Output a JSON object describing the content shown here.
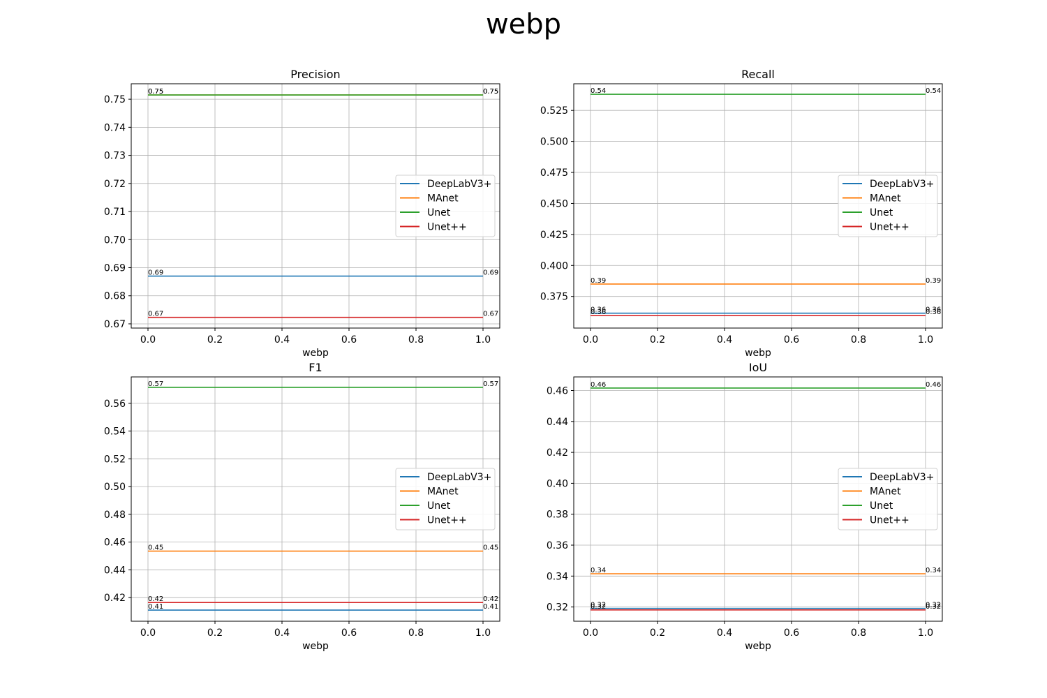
{
  "figure": {
    "title": "webp"
  },
  "chart_data": [
    {
      "type": "line",
      "title": "Precision",
      "xlabel": "webp",
      "ylabel": "",
      "x": [
        0.0,
        1.0
      ],
      "xlim": [
        -0.05,
        1.05
      ],
      "ylim": [
        0.6685,
        0.7555
      ],
      "xticks": [
        0.0,
        0.2,
        0.4,
        0.6,
        0.8,
        1.0
      ],
      "xtick_labels": [
        "0.0",
        "0.2",
        "0.4",
        "0.6",
        "0.8",
        "1.0"
      ],
      "yticks": [
        0.67,
        0.68,
        0.69,
        0.7,
        0.71,
        0.72,
        0.73,
        0.74,
        0.75
      ],
      "ytick_labels": [
        "0.67",
        "0.68",
        "0.69",
        "0.70",
        "0.71",
        "0.72",
        "0.73",
        "0.74",
        "0.75"
      ],
      "grid": true,
      "legend": "center right",
      "series": [
        {
          "name": "DeepLabV3+",
          "color": "#1f77b4",
          "values": [
            0.687,
            0.687
          ],
          "labels": [
            "0.69",
            "0.69"
          ]
        },
        {
          "name": "MAnet",
          "color": "#ff7f0e",
          "values": [
            0.7515,
            0.7515
          ],
          "labels": [
            "0.75",
            "0.75"
          ]
        },
        {
          "name": "Unet",
          "color": "#2ca02c",
          "values": [
            0.7515,
            0.7515
          ],
          "labels": [
            "0.75",
            "0.75"
          ]
        },
        {
          "name": "Unet++",
          "color": "#d62728",
          "values": [
            0.6723,
            0.6723
          ],
          "labels": [
            "0.67",
            "0.67"
          ]
        }
      ]
    },
    {
      "type": "line",
      "title": "Recall",
      "xlabel": "webp",
      "ylabel": "",
      "x": [
        0.0,
        1.0
      ],
      "xlim": [
        -0.05,
        1.05
      ],
      "ylim": [
        0.3495,
        0.5465
      ],
      "xticks": [
        0.0,
        0.2,
        0.4,
        0.6,
        0.8,
        1.0
      ],
      "xtick_labels": [
        "0.0",
        "0.2",
        "0.4",
        "0.6",
        "0.8",
        "1.0"
      ],
      "yticks": [
        0.375,
        0.4,
        0.425,
        0.45,
        0.475,
        0.5,
        0.525
      ],
      "ytick_labels": [
        "0.375",
        "0.400",
        "0.425",
        "0.450",
        "0.475",
        "0.500",
        "0.525"
      ],
      "grid": true,
      "legend": "center right",
      "series": [
        {
          "name": "DeepLabV3+",
          "color": "#1f77b4",
          "values": [
            0.3615,
            0.3615
          ],
          "labels": [
            "0.36",
            "0.36"
          ]
        },
        {
          "name": "MAnet",
          "color": "#ff7f0e",
          "values": [
            0.385,
            0.385
          ],
          "labels": [
            "0.39",
            "0.39"
          ]
        },
        {
          "name": "Unet",
          "color": "#2ca02c",
          "values": [
            0.538,
            0.538
          ],
          "labels": [
            "0.54",
            "0.54"
          ]
        },
        {
          "name": "Unet++",
          "color": "#d62728",
          "values": [
            0.3595,
            0.3595
          ],
          "labels": [
            "0.36",
            "0.36"
          ]
        }
      ]
    },
    {
      "type": "line",
      "title": "F1",
      "xlabel": "webp",
      "ylabel": "",
      "x": [
        0.0,
        1.0
      ],
      "xlim": [
        -0.05,
        1.05
      ],
      "ylim": [
        0.403,
        0.579
      ],
      "xticks": [
        0.0,
        0.2,
        0.4,
        0.6,
        0.8,
        1.0
      ],
      "xtick_labels": [
        "0.0",
        "0.2",
        "0.4",
        "0.6",
        "0.8",
        "1.0"
      ],
      "yticks": [
        0.42,
        0.44,
        0.46,
        0.48,
        0.5,
        0.52,
        0.54,
        0.56
      ],
      "ytick_labels": [
        "0.42",
        "0.44",
        "0.46",
        "0.48",
        "0.50",
        "0.52",
        "0.54",
        "0.56"
      ],
      "grid": true,
      "legend": "center right",
      "series": [
        {
          "name": "DeepLabV3+",
          "color": "#1f77b4",
          "values": [
            0.411,
            0.411
          ],
          "labels": [
            "0.41",
            "0.41"
          ]
        },
        {
          "name": "MAnet",
          "color": "#ff7f0e",
          "values": [
            0.4535,
            0.4535
          ],
          "labels": [
            "0.45",
            "0.45"
          ]
        },
        {
          "name": "Unet",
          "color": "#2ca02c",
          "values": [
            0.5715,
            0.5715
          ],
          "labels": [
            "0.57",
            "0.57"
          ]
        },
        {
          "name": "Unet++",
          "color": "#d62728",
          "values": [
            0.4165,
            0.4165
          ],
          "labels": [
            "0.42",
            "0.42"
          ]
        }
      ]
    },
    {
      "type": "line",
      "title": "IoU",
      "xlabel": "webp",
      "ylabel": "",
      "x": [
        0.0,
        1.0
      ],
      "xlim": [
        -0.05,
        1.05
      ],
      "ylim": [
        0.3108,
        0.4688
      ],
      "xticks": [
        0.0,
        0.2,
        0.4,
        0.6,
        0.8,
        1.0
      ],
      "xtick_labels": [
        "0.0",
        "0.2",
        "0.4",
        "0.6",
        "0.8",
        "1.0"
      ],
      "yticks": [
        0.32,
        0.34,
        0.36,
        0.38,
        0.4,
        0.42,
        0.44,
        0.46
      ],
      "ytick_labels": [
        "0.32",
        "0.34",
        "0.36",
        "0.38",
        "0.40",
        "0.42",
        "0.44",
        "0.46"
      ],
      "grid": true,
      "legend": "center right",
      "series": [
        {
          "name": "DeepLabV3+",
          "color": "#1f77b4",
          "values": [
            0.3191,
            0.3191
          ],
          "labels": [
            "0.32",
            "0.32"
          ]
        },
        {
          "name": "MAnet",
          "color": "#ff7f0e",
          "values": [
            0.3415,
            0.3415
          ],
          "labels": [
            "0.34",
            "0.34"
          ]
        },
        {
          "name": "Unet",
          "color": "#2ca02c",
          "values": [
            0.4616,
            0.4616
          ],
          "labels": [
            "0.46",
            "0.46"
          ]
        },
        {
          "name": "Unet++",
          "color": "#d62728",
          "values": [
            0.3181,
            0.3181
          ],
          "labels": [
            "0.32",
            "0.32"
          ]
        }
      ]
    }
  ]
}
